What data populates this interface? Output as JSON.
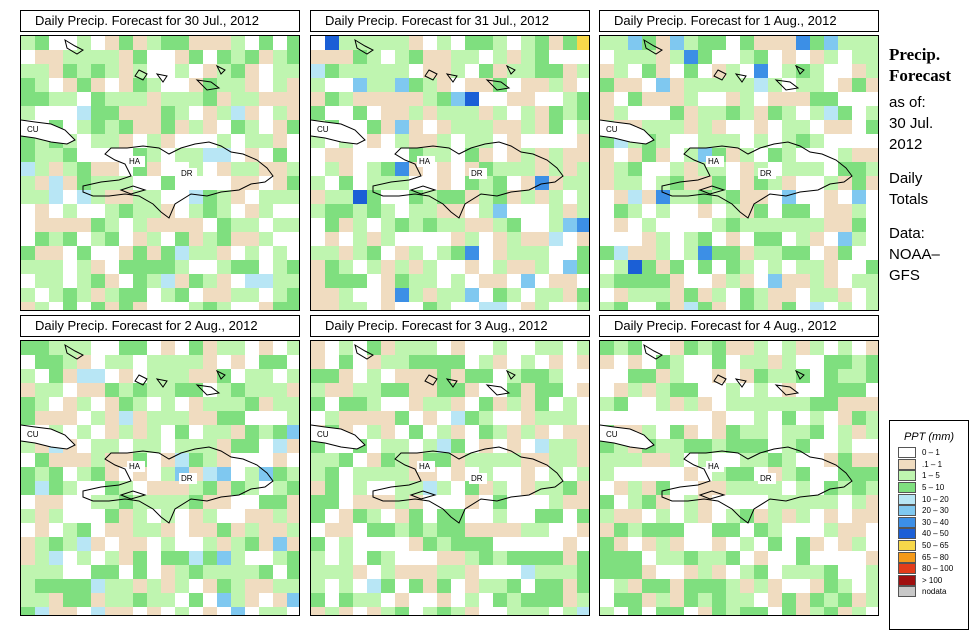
{
  "panels": [
    {
      "title": "Daily Precip. Forecast for  30 Jul., 2012",
      "seed": 11,
      "wet": 0.8
    },
    {
      "title": "Daily Precip. Forecast for  31 Jul., 2012",
      "seed": 23,
      "wet": 1.6
    },
    {
      "title": "Daily Precip. Forecast for  1 Aug., 2012",
      "seed": 37,
      "wet": 1.4
    },
    {
      "title": "Daily Precip. Forecast for  2 Aug., 2012",
      "seed": 41,
      "wet": 1.1
    },
    {
      "title": "Daily Precip. Forecast for  3 Aug., 2012",
      "seed": 53,
      "wet": 0.6
    },
    {
      "title": "Daily Precip. Forecast for  4 Aug., 2012",
      "seed": 67,
      "wet": 0.35
    }
  ],
  "map_labels": {
    "cuba": "CU",
    "haiti": "HA",
    "dominican_republic": "DR"
  },
  "sidebar": {
    "heading_line1": "Precip.",
    "heading_line2": "Forecast",
    "as_of_label": "as of:",
    "date_line1": "30 Jul.",
    "date_line2": "2012",
    "totals_line1": "Daily",
    "totals_line2": "Totals",
    "data_line1": "Data:",
    "data_line2": "NOAA–",
    "data_line3": "GFS"
  },
  "legend": {
    "title": "PPT (mm)",
    "items": [
      {
        "label": "0 – 1",
        "color": "#ffffff"
      },
      {
        "label": ".1 – 1",
        "color": "#f0dcc0"
      },
      {
        "label": "1 – 5",
        "color": "#bff5b0"
      },
      {
        "label": "5 – 10",
        "color": "#7fdf7f"
      },
      {
        "label": "10 – 20",
        "color": "#b8e6f5"
      },
      {
        "label": "20 – 30",
        "color": "#7fc8f0"
      },
      {
        "label": "30 – 40",
        "color": "#3c8fe6"
      },
      {
        "label": "40 – 50",
        "color": "#1b5fd6"
      },
      {
        "label": "50 – 65",
        "color": "#f7d84a"
      },
      {
        "label": "65 – 80",
        "color": "#f59a1a"
      },
      {
        "label": "80 – 100",
        "color": "#e33c1a"
      },
      {
        "label": "> 100",
        "color": "#a01010"
      },
      {
        "label": "nodata",
        "color": "#c8c8c8"
      }
    ]
  }
}
